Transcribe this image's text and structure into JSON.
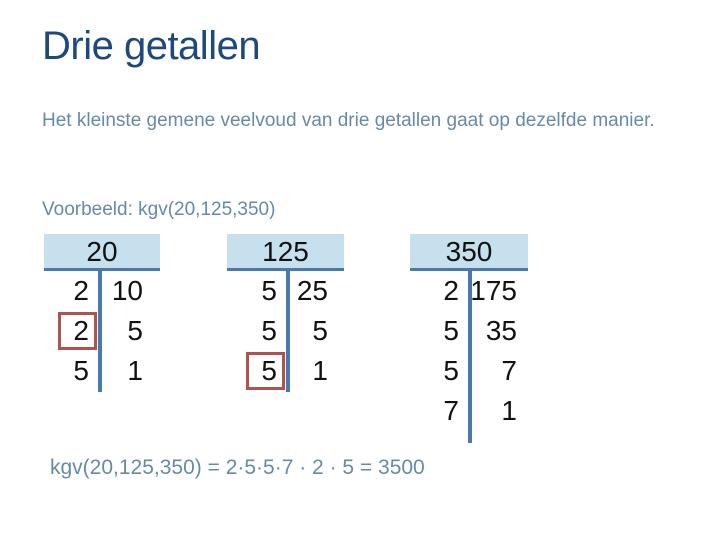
{
  "slide": {
    "title": "Drie getallen",
    "intro": "Het kleinste gemene veelvoud van drie getallen gaat op dezelfde manier.",
    "example_label": "Voorbeeld: kgv(20,125,350)",
    "result_line": "kgv(20,125,350) = 2·5·5·7 · 2 · 5 = 3500"
  },
  "colors": {
    "background": "#ffffff",
    "title": "#1f497d",
    "body_text": "#6889aa",
    "table_line": "#4a7aad",
    "header_fill": "#c6e1ed",
    "highlight_box": "#b0524e",
    "number_text": "#121212"
  },
  "tables": [
    {
      "header": "20",
      "rows": [
        {
          "divisor": "2",
          "quotient": "10",
          "boxed": false
        },
        {
          "divisor": "2",
          "quotient": "5",
          "boxed": true
        },
        {
          "divisor": "5",
          "quotient": "1",
          "boxed": false
        }
      ]
    },
    {
      "header": "125",
      "rows": [
        {
          "divisor": "5",
          "quotient": "25",
          "boxed": false
        },
        {
          "divisor": "5",
          "quotient": "5",
          "boxed": false
        },
        {
          "divisor": "5",
          "quotient": "1",
          "boxed": true
        }
      ]
    },
    {
      "header": "350",
      "rows": [
        {
          "divisor": "2",
          "quotient": "175",
          "boxed": false
        },
        {
          "divisor": "5",
          "quotient": "35",
          "boxed": false
        },
        {
          "divisor": "5",
          "quotient": "7",
          "boxed": false
        },
        {
          "divisor": "7",
          "quotient": "1",
          "boxed": false
        }
      ]
    }
  ]
}
